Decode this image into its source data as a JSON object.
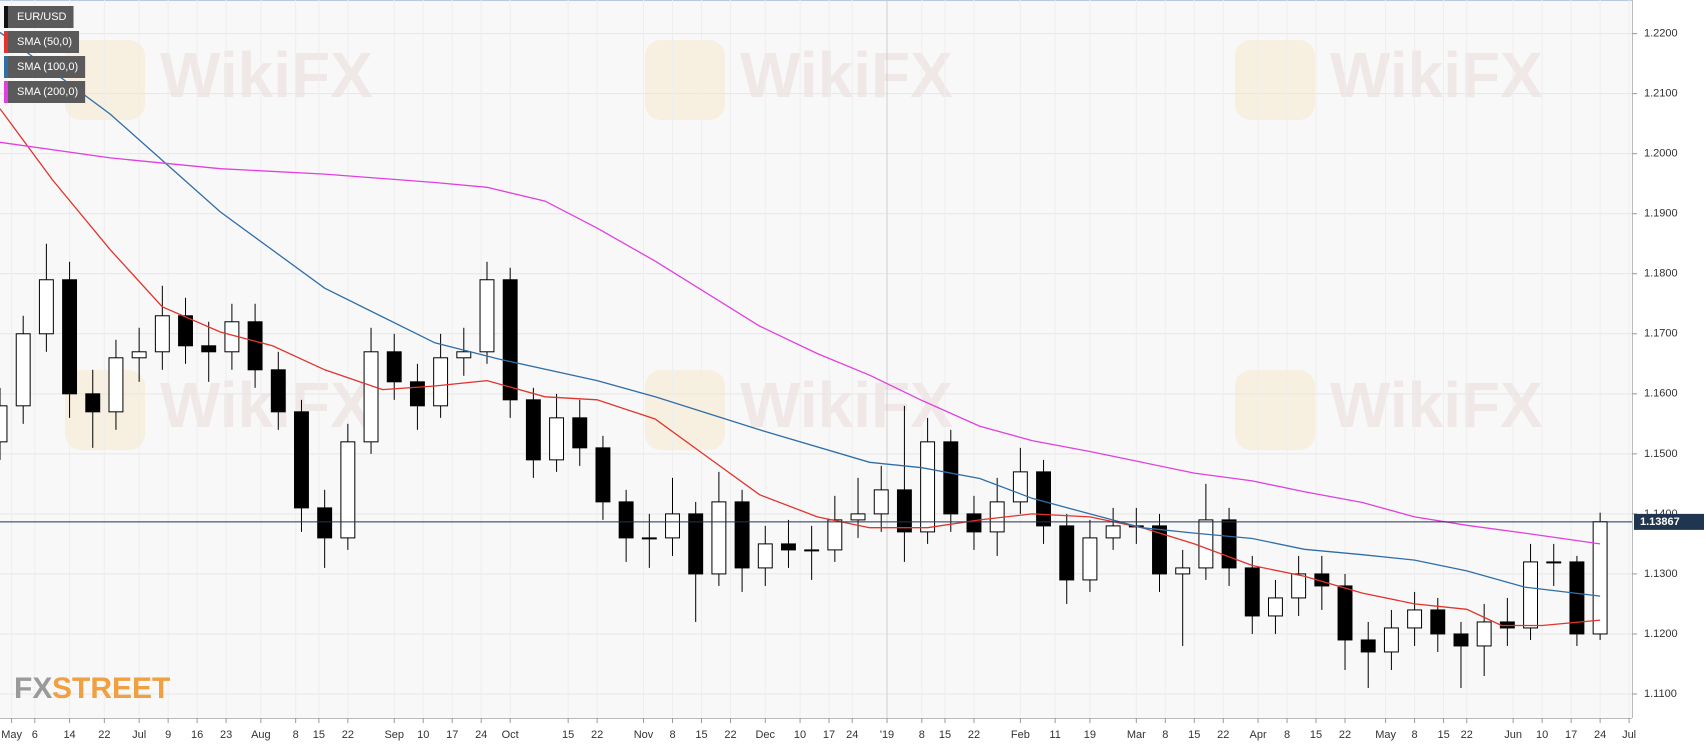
{
  "chart_data": {
    "type": "candlestick",
    "instrument": "EUR/USD",
    "watermark": "WikiFX",
    "logo_fx": "FX",
    "logo_street": "STREET",
    "up_color": "#ffffff",
    "down_color": "#000000",
    "grid": true,
    "legend": "top-left",
    "xlim": [
      0,
      281.5
    ],
    "ylim": [
      1.106,
      1.2256
    ],
    "xticks": [
      {
        "value": 2,
        "label": "May"
      },
      {
        "value": 6,
        "label": "6"
      },
      {
        "value": 12,
        "label": "14"
      },
      {
        "value": 18,
        "label": "22"
      },
      {
        "value": 24,
        "label": "Jul"
      },
      {
        "value": 29,
        "label": "9"
      },
      {
        "value": 34,
        "label": "16"
      },
      {
        "value": 39,
        "label": "23"
      },
      {
        "value": 45,
        "label": "Aug"
      },
      {
        "value": 51,
        "label": "8"
      },
      {
        "value": 55,
        "label": "15"
      },
      {
        "value": 60,
        "label": "22"
      },
      {
        "value": 68,
        "label": "Sep"
      },
      {
        "value": 73,
        "label": "10"
      },
      {
        "value": 78,
        "label": "17"
      },
      {
        "value": 83,
        "label": "24"
      },
      {
        "value": 88,
        "label": "Oct"
      },
      {
        "value": 98,
        "label": "15"
      },
      {
        "value": 103,
        "label": "22"
      },
      {
        "value": 111,
        "label": "Nov"
      },
      {
        "value": 116,
        "label": "8"
      },
      {
        "value": 121,
        "label": "15"
      },
      {
        "value": 126,
        "label": "22"
      },
      {
        "value": 132,
        "label": "Dec"
      },
      {
        "value": 138,
        "label": "10"
      },
      {
        "value": 143,
        "label": "17"
      },
      {
        "value": 147,
        "label": "24"
      },
      {
        "value": 153,
        "label": "'19"
      },
      {
        "value": 159,
        "label": "8"
      },
      {
        "value": 163,
        "label": "15"
      },
      {
        "value": 168,
        "label": "22"
      },
      {
        "value": 176,
        "label": "Feb"
      },
      {
        "value": 182,
        "label": "11"
      },
      {
        "value": 188,
        "label": "19"
      },
      {
        "value": 196,
        "label": "Mar"
      },
      {
        "value": 201,
        "label": "8"
      },
      {
        "value": 206,
        "label": "15"
      },
      {
        "value": 211,
        "label": "22"
      },
      {
        "value": 217,
        "label": "Apr"
      },
      {
        "value": 222,
        "label": "8"
      },
      {
        "value": 227,
        "label": "15"
      },
      {
        "value": 232,
        "label": "22"
      },
      {
        "value": 239,
        "label": "May"
      },
      {
        "value": 244,
        "label": "8"
      },
      {
        "value": 249,
        "label": "15"
      },
      {
        "value": 253,
        "label": "22"
      },
      {
        "value": 261,
        "label": "Jun"
      },
      {
        "value": 266,
        "label": "10"
      },
      {
        "value": 271,
        "label": "17"
      },
      {
        "value": 276,
        "label": "24"
      },
      {
        "value": 281,
        "label": "Jul"
      }
    ],
    "yticks": [
      {
        "value": 1.11,
        "label": "1.1100"
      },
      {
        "value": 1.12,
        "label": "1.1200"
      },
      {
        "value": 1.13,
        "label": "1.1300"
      },
      {
        "value": 1.14,
        "label": "1.1400"
      },
      {
        "value": 1.15,
        "label": "1.1500"
      },
      {
        "value": 1.16,
        "label": "1.1600"
      },
      {
        "value": 1.17,
        "label": "1.1700"
      },
      {
        "value": 1.18,
        "label": "1.1800"
      },
      {
        "value": 1.19,
        "label": "1.1900"
      },
      {
        "value": 1.2,
        "label": "1.2000"
      },
      {
        "value": 1.21,
        "label": "1.2100"
      },
      {
        "value": 1.22,
        "label": "1.2200"
      }
    ],
    "last_price": {
      "value": 1.13867,
      "label": "1.13867"
    },
    "x": [
      0,
      4,
      8,
      12,
      16,
      20,
      24,
      28,
      32,
      36,
      40,
      44,
      48,
      52,
      56,
      60,
      64,
      68,
      72,
      76,
      80,
      84,
      88,
      92,
      96,
      100,
      104,
      108,
      112,
      116,
      120,
      124,
      128,
      132,
      136,
      140,
      144,
      148,
      152,
      156,
      160,
      164,
      168,
      172,
      176,
      180,
      184,
      188,
      192,
      196,
      200,
      204,
      208,
      212,
      216,
      220,
      224,
      228,
      232,
      236,
      240,
      244,
      248,
      252,
      256,
      260,
      264,
      268,
      272,
      276
    ],
    "open": [
      1.152,
      1.158,
      1.17,
      1.179,
      1.16,
      1.157,
      1.166,
      1.167,
      1.173,
      1.168,
      1.167,
      1.172,
      1.164,
      1.157,
      1.141,
      1.136,
      1.152,
      1.167,
      1.162,
      1.158,
      1.166,
      1.167,
      1.179,
      1.159,
      1.149,
      1.156,
      1.151,
      1.142,
      1.136,
      1.136,
      1.14,
      1.13,
      1.142,
      1.131,
      1.135,
      1.134,
      1.134,
      1.139,
      1.14,
      1.144,
      1.137,
      1.152,
      1.14,
      1.137,
      1.142,
      1.147,
      1.138,
      1.129,
      1.136,
      1.138,
      1.138,
      1.13,
      1.131,
      1.139,
      1.131,
      1.123,
      1.126,
      1.13,
      1.128,
      1.119,
      1.117,
      1.121,
      1.124,
      1.12,
      1.118,
      1.122,
      1.121,
      1.132,
      1.132,
      1.12
    ],
    "high": [
      1.161,
      1.173,
      1.185,
      1.182,
      1.164,
      1.169,
      1.171,
      1.178,
      1.176,
      1.172,
      1.175,
      1.175,
      1.167,
      1.159,
      1.144,
      1.155,
      1.171,
      1.17,
      1.165,
      1.17,
      1.171,
      1.182,
      1.181,
      1.161,
      1.16,
      1.159,
      1.153,
      1.144,
      1.14,
      1.146,
      1.142,
      1.147,
      1.144,
      1.138,
      1.139,
      1.138,
      1.143,
      1.146,
      1.148,
      1.158,
      1.156,
      1.154,
      1.143,
      1.146,
      1.151,
      1.149,
      1.14,
      1.139,
      1.141,
      1.141,
      1.14,
      1.134,
      1.145,
      1.141,
      1.133,
      1.129,
      1.133,
      1.133,
      1.13,
      1.122,
      1.124,
      1.127,
      1.126,
      1.122,
      1.125,
      1.126,
      1.135,
      1.135,
      1.133,
      1.1402
    ],
    "low": [
      1.149,
      1.155,
      1.167,
      1.156,
      1.151,
      1.154,
      1.162,
      1.164,
      1.165,
      1.162,
      1.164,
      1.161,
      1.154,
      1.137,
      1.131,
      1.134,
      1.15,
      1.159,
      1.154,
      1.156,
      1.163,
      1.165,
      1.156,
      1.146,
      1.147,
      1.148,
      1.139,
      1.132,
      1.131,
      1.133,
      1.122,
      1.128,
      1.127,
      1.128,
      1.131,
      1.129,
      1.132,
      1.136,
      1.137,
      1.132,
      1.135,
      1.137,
      1.134,
      1.133,
      1.14,
      1.135,
      1.125,
      1.127,
      1.134,
      1.135,
      1.127,
      1.118,
      1.129,
      1.128,
      1.12,
      1.12,
      1.123,
      1.124,
      1.114,
      1.111,
      1.114,
      1.118,
      1.117,
      1.111,
      1.113,
      1.118,
      1.119,
      1.128,
      1.118,
      1.119
    ],
    "close": [
      1.158,
      1.17,
      1.179,
      1.16,
      1.157,
      1.166,
      1.167,
      1.173,
      1.168,
      1.167,
      1.172,
      1.164,
      1.157,
      1.141,
      1.136,
      1.152,
      1.167,
      1.162,
      1.158,
      1.166,
      1.167,
      1.179,
      1.159,
      1.149,
      1.156,
      1.151,
      1.142,
      1.136,
      1.136,
      1.14,
      1.13,
      1.142,
      1.131,
      1.135,
      1.134,
      1.134,
      1.139,
      1.14,
      1.144,
      1.137,
      1.152,
      1.14,
      1.137,
      1.142,
      1.147,
      1.138,
      1.129,
      1.136,
      1.138,
      1.138,
      1.13,
      1.131,
      1.139,
      1.131,
      1.123,
      1.126,
      1.13,
      1.128,
      1.119,
      1.117,
      1.121,
      1.124,
      1.12,
      1.118,
      1.122,
      1.121,
      1.132,
      1.132,
      1.12,
      1.1387
    ],
    "series": [
      {
        "name": "SMA (50,0)",
        "color": "#e0342c",
        "x": [
          0,
          9,
          19,
          28,
          38,
          47,
          56,
          66,
          75,
          84,
          94,
          103,
          113,
          122,
          131,
          141,
          150,
          160,
          169,
          178,
          188,
          197,
          206,
          216,
          225,
          235,
          244,
          253,
          259,
          266,
          276
        ],
        "values": [
          1.2075,
          1.1957,
          1.184,
          1.1745,
          1.1703,
          1.168,
          1.164,
          1.1607,
          1.1613,
          1.1622,
          1.1595,
          1.159,
          1.1558,
          1.1495,
          1.1432,
          1.1395,
          1.1377,
          1.1377,
          1.139,
          1.14,
          1.1395,
          1.1377,
          1.135,
          1.1314,
          1.1296,
          1.1268,
          1.125,
          1.1241,
          1.1214,
          1.1214,
          1.1223
        ]
      },
      {
        "name": "SMA (100,0)",
        "color": "#2f6ea8",
        "x": [
          0,
          19,
          38,
          56,
          75,
          86,
          103,
          113,
          131,
          150,
          159,
          169,
          178,
          188,
          197,
          206,
          216,
          225,
          235,
          244,
          253,
          263,
          276
        ],
        "values": [
          1.2202,
          1.2066,
          1.1903,
          1.1776,
          1.1685,
          1.1658,
          1.1622,
          1.1595,
          1.154,
          1.1486,
          1.1477,
          1.1459,
          1.1426,
          1.14,
          1.1377,
          1.1368,
          1.1359,
          1.1341,
          1.1332,
          1.1323,
          1.1305,
          1.1278,
          1.1263
        ]
      },
      {
        "name": "SMA (200,0)",
        "color": "#e040e0",
        "x": [
          0,
          19,
          38,
          56,
          75,
          84,
          94,
          103,
          113,
          122,
          131,
          141,
          150,
          159,
          169,
          178,
          188,
          197,
          206,
          216,
          225,
          235,
          244,
          253,
          263,
          276
        ],
        "values": [
          1.2019,
          1.1993,
          1.1975,
          1.1966,
          1.1952,
          1.1944,
          1.1921,
          1.1876,
          1.1821,
          1.1767,
          1.1713,
          1.1667,
          1.1631,
          1.1589,
          1.1546,
          1.1522,
          1.1504,
          1.1486,
          1.1468,
          1.1455,
          1.1437,
          1.1419,
          1.1395,
          1.1381,
          1.1368,
          1.135
        ]
      }
    ]
  }
}
